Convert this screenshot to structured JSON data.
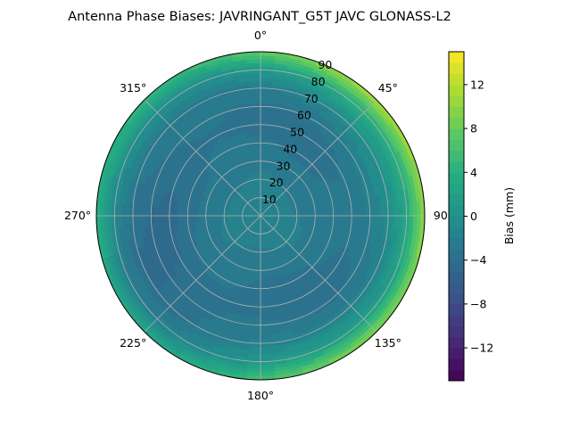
{
  "chart_data": {
    "type": "polar-contour",
    "title": "Antenna Phase Biases: JAVRINGANT_G5T  JAVC GLONASS-L2",
    "angular_tick_labels": [
      "0°",
      "45°",
      "90°",
      "135°",
      "180°",
      "225°",
      "270°",
      "315°"
    ],
    "radial_tick_labels": [
      "10",
      "20",
      "30",
      "40",
      "50",
      "60",
      "70",
      "80",
      "90"
    ],
    "radial_range": [
      0,
      90
    ],
    "colorbar": {
      "label": "Bias (mm)",
      "range": [
        -15,
        15
      ],
      "levels_step": 1,
      "tick_labels": [
        "12",
        "8",
        "4",
        "0",
        "−4",
        "−8",
        "−12"
      ],
      "tick_values": [
        12,
        8,
        4,
        0,
        -4,
        -8,
        -12
      ],
      "colormap": "viridis"
    },
    "approx_radial_profile": {
      "zenith_deg": [
        0,
        10,
        20,
        30,
        40,
        50,
        60,
        70,
        80,
        85,
        90
      ],
      "bias_mm": [
        -1,
        -1.5,
        -2,
        -2.5,
        -3,
        -3.5,
        -3,
        -2,
        1,
        4,
        7
      ]
    },
    "approx_east_west_asymmetry_mm_at_rim": 4,
    "grid": true
  }
}
